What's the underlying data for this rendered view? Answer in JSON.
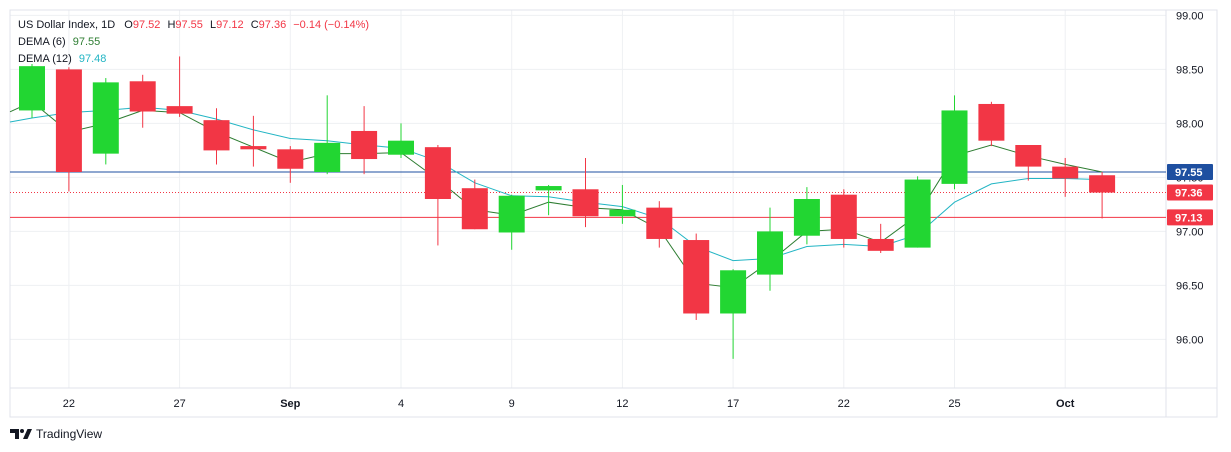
{
  "legend": {
    "symbol": "US Dollar Index, 1D",
    "ohlc": [
      {
        "key": "O",
        "value": "97.52"
      },
      {
        "key": "H",
        "value": "97.55"
      },
      {
        "key": "L",
        "value": "97.12"
      },
      {
        "key": "C",
        "value": "97.36"
      }
    ],
    "change": "−0.14 (−0.14%)",
    "indicators": [
      {
        "label": "DEMA (6)",
        "value": "97.55"
      },
      {
        "label": "DEMA (12)",
        "value": "97.48"
      }
    ]
  },
  "brand": "TradingView",
  "colors": {
    "up": "#22d632",
    "down": "#f23645",
    "dema6": "#2e7d32",
    "dema12": "#22b5c4",
    "blue_line": "#1e4fa0",
    "grid": "#eef0f3"
  },
  "chart_data": {
    "type": "candlestick",
    "y_range": [
      95.55,
      99.05
    ],
    "y_ticks": [
      96.0,
      96.5,
      97.0,
      97.5,
      98.0,
      98.5,
      99.0
    ],
    "y_tick_labels": [
      "96.00",
      "96.50",
      "97.00",
      "97.50",
      "98.00",
      "98.50",
      "99.00"
    ],
    "x_labels": [
      {
        "index": 1,
        "label": "22"
      },
      {
        "index": 4,
        "label": "27"
      },
      {
        "index": 7,
        "label": "Sep"
      },
      {
        "index": 10,
        "label": "4"
      },
      {
        "index": 13,
        "label": "9"
      },
      {
        "index": 16,
        "label": "12"
      },
      {
        "index": 19,
        "label": "17"
      },
      {
        "index": 22,
        "label": "22"
      },
      {
        "index": 25,
        "label": "25"
      },
      {
        "index": 28,
        "label": "Oct"
      }
    ],
    "candles": [
      {
        "o": 98.12,
        "h": 98.55,
        "l": 98.05,
        "c": 98.53
      },
      {
        "o": 98.5,
        "h": 98.52,
        "l": 97.37,
        "c": 97.55
      },
      {
        "o": 97.72,
        "h": 98.42,
        "l": 97.62,
        "c": 98.38
      },
      {
        "o": 98.39,
        "h": 98.45,
        "l": 97.96,
        "c": 98.11
      },
      {
        "o": 98.16,
        "h": 98.62,
        "l": 98.06,
        "c": 98.09
      },
      {
        "o": 98.03,
        "h": 98.14,
        "l": 97.62,
        "c": 97.75
      },
      {
        "o": 97.79,
        "h": 98.07,
        "l": 97.6,
        "c": 97.76
      },
      {
        "o": 97.76,
        "h": 97.79,
        "l": 97.45,
        "c": 97.58
      },
      {
        "o": 97.55,
        "h": 98.26,
        "l": 97.53,
        "c": 97.82
      },
      {
        "o": 97.93,
        "h": 98.16,
        "l": 97.53,
        "c": 97.67
      },
      {
        "o": 97.71,
        "h": 98.0,
        "l": 97.68,
        "c": 97.84
      },
      {
        "o": 97.78,
        "h": 97.8,
        "l": 96.87,
        "c": 97.3
      },
      {
        "o": 97.4,
        "h": 97.48,
        "l": 97.02,
        "c": 97.02
      },
      {
        "o": 96.99,
        "h": 97.34,
        "l": 96.83,
        "c": 97.33
      },
      {
        "o": 97.38,
        "h": 97.43,
        "l": 97.15,
        "c": 97.42
      },
      {
        "o": 97.39,
        "h": 97.68,
        "l": 97.04,
        "c": 97.14
      },
      {
        "o": 97.14,
        "h": 97.43,
        "l": 97.07,
        "c": 97.2
      },
      {
        "o": 97.22,
        "h": 97.28,
        "l": 96.85,
        "c": 96.93
      },
      {
        "o": 96.92,
        "h": 96.98,
        "l": 96.18,
        "c": 96.24
      },
      {
        "o": 96.24,
        "h": 96.65,
        "l": 95.82,
        "c": 96.64
      },
      {
        "o": 96.6,
        "h": 97.22,
        "l": 96.45,
        "c": 97.0
      },
      {
        "o": 96.96,
        "h": 97.41,
        "l": 96.88,
        "c": 97.3
      },
      {
        "o": 97.34,
        "h": 97.39,
        "l": 96.85,
        "c": 96.93
      },
      {
        "o": 96.93,
        "h": 97.07,
        "l": 96.8,
        "c": 96.82
      },
      {
        "o": 96.85,
        "h": 97.51,
        "l": 96.85,
        "c": 97.48
      },
      {
        "o": 97.44,
        "h": 98.26,
        "l": 97.39,
        "c": 98.12
      },
      {
        "o": 98.18,
        "h": 98.2,
        "l": 97.79,
        "c": 97.84
      },
      {
        "o": 97.8,
        "h": 97.8,
        "l": 97.47,
        "c": 97.6
      },
      {
        "o": 97.6,
        "h": 97.68,
        "l": 97.32,
        "c": 97.49
      },
      {
        "o": 97.52,
        "h": 97.55,
        "l": 97.12,
        "c": 97.36
      }
    ],
    "dema6": [
      98.2,
      97.92,
      98.0,
      98.12,
      98.1,
      97.92,
      97.78,
      97.64,
      97.72,
      97.72,
      97.73,
      97.48,
      97.2,
      97.15,
      97.27,
      97.22,
      97.2,
      97.02,
      96.52,
      96.48,
      96.72,
      97.0,
      97.02,
      96.9,
      97.15,
      97.7,
      97.8,
      97.7,
      97.62,
      97.55
    ],
    "dema12": [
      98.05,
      98.1,
      98.12,
      98.15,
      98.12,
      98.04,
      97.94,
      97.86,
      97.84,
      97.8,
      97.77,
      97.65,
      97.45,
      97.33,
      97.32,
      97.27,
      97.23,
      97.12,
      96.86,
      96.73,
      96.75,
      96.86,
      96.88,
      96.86,
      96.97,
      97.27,
      97.44,
      97.49,
      97.49,
      97.48
    ],
    "price_lines": [
      {
        "value": 97.55,
        "label": "97.55",
        "color": "#1e4fa0",
        "style": "solid"
      },
      {
        "value": 97.36,
        "label": "97.36",
        "color": "#f23645",
        "style": "dotted"
      },
      {
        "value": 97.13,
        "label": "97.13",
        "color": "#f23645",
        "style": "solid"
      }
    ],
    "grid": true
  }
}
